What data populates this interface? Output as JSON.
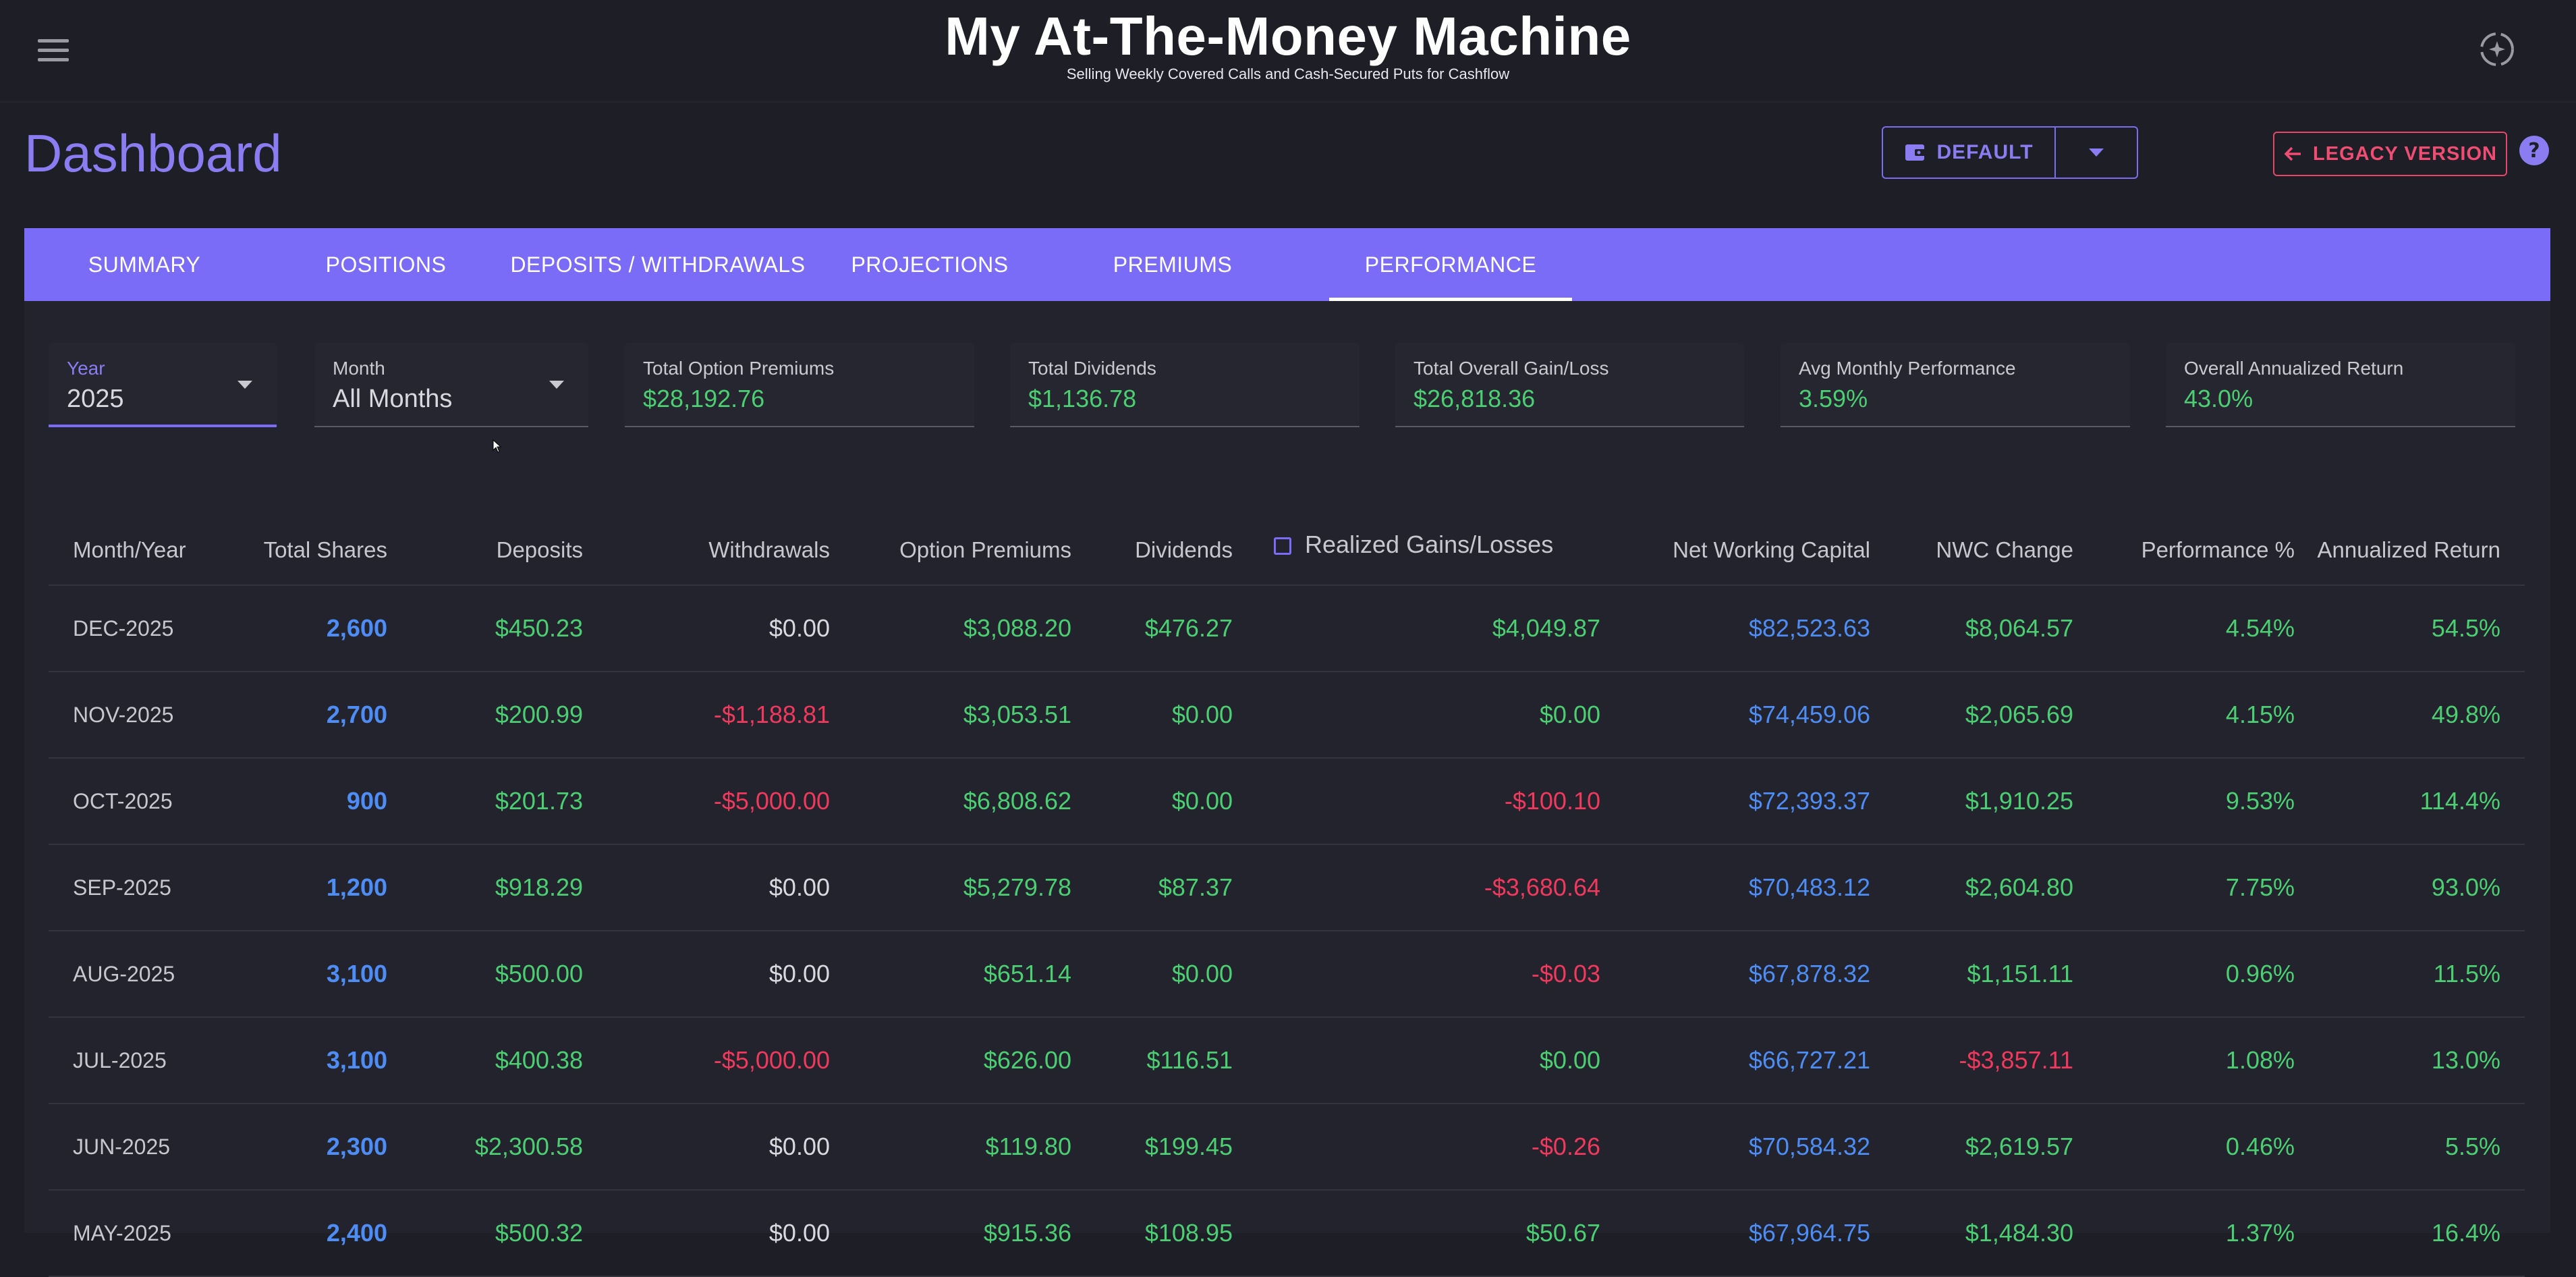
{
  "app": {
    "title": "My At-The-Money Machine",
    "subtitle": "Selling Weekly Covered Calls and Cash-Secured Puts for Cashflow"
  },
  "header": {
    "page_title": "Dashboard",
    "default_button": "DEFAULT",
    "legacy_button": "LEGACY VERSION"
  },
  "tabs": [
    {
      "label": "SUMMARY",
      "active": false
    },
    {
      "label": "POSITIONS",
      "active": false
    },
    {
      "label": "DEPOSITS / WITHDRAWALS",
      "active": false
    },
    {
      "label": "PROJECTIONS",
      "active": false
    },
    {
      "label": "PREMIUMS",
      "active": false
    },
    {
      "label": "PERFORMANCE",
      "active": true
    }
  ],
  "filters": {
    "year": {
      "label": "Year",
      "value": "2025"
    },
    "month": {
      "label": "Month",
      "value": "All Months"
    }
  },
  "stats": [
    {
      "label": "Total Option Premiums",
      "value": "$28,192.76"
    },
    {
      "label": "Total Dividends",
      "value": "$1,136.78"
    },
    {
      "label": "Total Overall Gain/Loss",
      "value": "$26,818.36"
    },
    {
      "label": "Avg Monthly Performance",
      "value": "3.59%"
    },
    {
      "label": "Overall Annualized Return",
      "value": "43.0%"
    }
  ],
  "table": {
    "headers": {
      "month": "Month/Year",
      "shares": "Total Shares",
      "deposits": "Deposits",
      "withdrawals": "Withdrawals",
      "premiums": "Option Premiums",
      "dividends": "Dividends",
      "realized": "Realized Gains/Losses",
      "nwc": "Net Working Capital",
      "nwc_change": "NWC Change",
      "performance": "Performance %",
      "annualized": "Annualized Return"
    },
    "rows": [
      {
        "month": "DEC-2025",
        "shares": "2,600",
        "deposits": "$450.23",
        "withdrawals": "$0.00",
        "premiums": "$3,088.20",
        "dividends": "$476.27",
        "realized": "$4,049.87",
        "nwc": "$82,523.63",
        "nwc_change": "$8,064.57",
        "performance": "4.54%",
        "annualized": "54.5%"
      },
      {
        "month": "NOV-2025",
        "shares": "2,700",
        "deposits": "$200.99",
        "withdrawals": "-$1,188.81",
        "premiums": "$3,053.51",
        "dividends": "$0.00",
        "realized": "$0.00",
        "nwc": "$74,459.06",
        "nwc_change": "$2,065.69",
        "performance": "4.15%",
        "annualized": "49.8%"
      },
      {
        "month": "OCT-2025",
        "shares": "900",
        "deposits": "$201.73",
        "withdrawals": "-$5,000.00",
        "premiums": "$6,808.62",
        "dividends": "$0.00",
        "realized": "-$100.10",
        "nwc": "$72,393.37",
        "nwc_change": "$1,910.25",
        "performance": "9.53%",
        "annualized": "114.4%"
      },
      {
        "month": "SEP-2025",
        "shares": "1,200",
        "deposits": "$918.29",
        "withdrawals": "$0.00",
        "premiums": "$5,279.78",
        "dividends": "$87.37",
        "realized": "-$3,680.64",
        "nwc": "$70,483.12",
        "nwc_change": "$2,604.80",
        "performance": "7.75%",
        "annualized": "93.0%"
      },
      {
        "month": "AUG-2025",
        "shares": "3,100",
        "deposits": "$500.00",
        "withdrawals": "$0.00",
        "premiums": "$651.14",
        "dividends": "$0.00",
        "realized": "-$0.03",
        "nwc": "$67,878.32",
        "nwc_change": "$1,151.11",
        "performance": "0.96%",
        "annualized": "11.5%"
      },
      {
        "month": "JUL-2025",
        "shares": "3,100",
        "deposits": "$400.38",
        "withdrawals": "-$5,000.00",
        "premiums": "$626.00",
        "dividends": "$116.51",
        "realized": "$0.00",
        "nwc": "$66,727.21",
        "nwc_change": "-$3,857.11",
        "performance": "1.08%",
        "annualized": "13.0%"
      },
      {
        "month": "JUN-2025",
        "shares": "2,300",
        "deposits": "$2,300.58",
        "withdrawals": "$0.00",
        "premiums": "$119.80",
        "dividends": "$199.45",
        "realized": "-$0.26",
        "nwc": "$70,584.32",
        "nwc_change": "$2,619.57",
        "performance": "0.46%",
        "annualized": "5.5%"
      },
      {
        "month": "MAY-2025",
        "shares": "2,400",
        "deposits": "$500.32",
        "withdrawals": "$0.00",
        "premiums": "$915.36",
        "dividends": "$108.95",
        "realized": "$50.67",
        "nwc": "$67,964.75",
        "nwc_change": "$1,484.30",
        "performance": "1.37%",
        "annualized": "16.4%"
      }
    ]
  },
  "colors": {
    "accent": "#7b6cf8",
    "positive": "#4ccf72",
    "negative": "#f0395c",
    "capital": "#4e8df5",
    "legacy": "#ef4d72"
  },
  "icons": [
    "menu-icon",
    "ai-sparkle-icon",
    "wallet-icon",
    "caret-down-icon",
    "arrow-left-icon",
    "help-icon",
    "checkbox-icon"
  ]
}
